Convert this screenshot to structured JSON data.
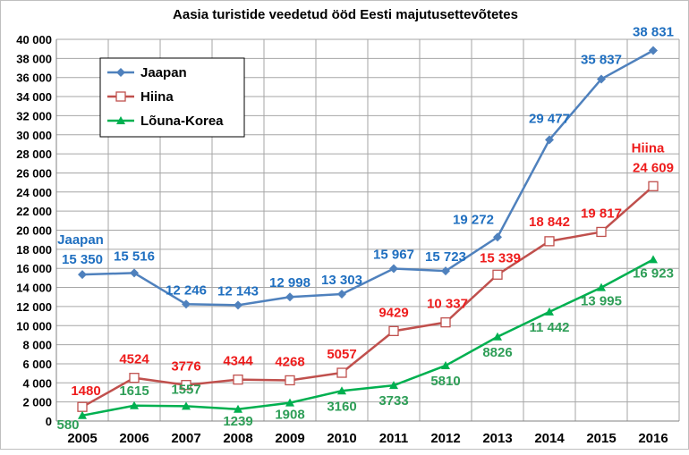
{
  "chart_data": {
    "type": "line",
    "title": "Aasia turistide veedetud ööd Eesti majutusettevõtetes",
    "categories": [
      "2005",
      "2006",
      "2007",
      "2008",
      "2009",
      "2010",
      "2011",
      "2012",
      "2013",
      "2014",
      "2015",
      "2016"
    ],
    "ylim": [
      0,
      40000
    ],
    "yticks": [
      {
        "value": 0,
        "label": "0"
      },
      {
        "value": 2000,
        "label": "2 000"
      },
      {
        "value": 4000,
        "label": "4 000"
      },
      {
        "value": 6000,
        "label": "6 000"
      },
      {
        "value": 8000,
        "label": "8 000"
      },
      {
        "value": 10000,
        "label": "10 000"
      },
      {
        "value": 12000,
        "label": "12 000"
      },
      {
        "value": 14000,
        "label": "14 000"
      },
      {
        "value": 16000,
        "label": "16 000"
      },
      {
        "value": 18000,
        "label": "18 000"
      },
      {
        "value": 20000,
        "label": "20 000"
      },
      {
        "value": 22000,
        "label": "22 000"
      },
      {
        "value": 24000,
        "label": "24 000"
      },
      {
        "value": 26000,
        "label": "26 000"
      },
      {
        "value": 28000,
        "label": "28 000"
      },
      {
        "value": 30000,
        "label": "30 000"
      },
      {
        "value": 32000,
        "label": "32 000"
      },
      {
        "value": 34000,
        "label": "34 000"
      },
      {
        "value": 36000,
        "label": "36 000"
      },
      {
        "value": 38000,
        "label": "38 000"
      },
      {
        "value": 40000,
        "label": "40 000"
      }
    ],
    "grid": true,
    "legend_position": "top-left",
    "series": [
      {
        "name": "Jaapan",
        "color": "#4f81bd",
        "label_color": "#1f6fc0",
        "marker": "diamond",
        "values": [
          15350,
          15516,
          12246,
          12143,
          12998,
          13303,
          15967,
          15723,
          19272,
          29477,
          35837,
          38831
        ],
        "labels": [
          "15 350",
          "15 516",
          "12 246",
          "12 143",
          "12 998",
          "13 303",
          "15 967",
          "15 723",
          "19 272",
          "29 477",
          "35 837",
          "38 831"
        ]
      },
      {
        "name": "Hiina",
        "color": "#c0504d",
        "label_color": "#ee1c1c",
        "marker": "square-open",
        "values": [
          1480,
          4524,
          3776,
          4344,
          4268,
          5057,
          9429,
          10337,
          15339,
          18842,
          19817,
          24609
        ],
        "labels": [
          "1480",
          "4524",
          "3776",
          "4344",
          "4268",
          "5057",
          "9429",
          "10 337",
          "15 339",
          "18 842",
          "19 817",
          "24 609"
        ]
      },
      {
        "name": "Lõuna-Korea",
        "color": "#00b050",
        "label_color": "#2e9e57",
        "marker": "triangle",
        "values": [
          580,
          1615,
          1557,
          1239,
          1908,
          3160,
          3733,
          5810,
          8826,
          11442,
          13995,
          16923
        ],
        "labels": [
          "580",
          "1615",
          "1557",
          "1239",
          "1908",
          "3160",
          "3733",
          "5810",
          "8826",
          "11 442",
          "13 995",
          "16 923"
        ]
      }
    ],
    "annotations": [
      {
        "text": "Jaapan",
        "series": "Jaapan",
        "color": "#1f6fc0"
      },
      {
        "text": "Hiina",
        "series": "Hiina",
        "color": "#ee1c1c"
      }
    ]
  }
}
